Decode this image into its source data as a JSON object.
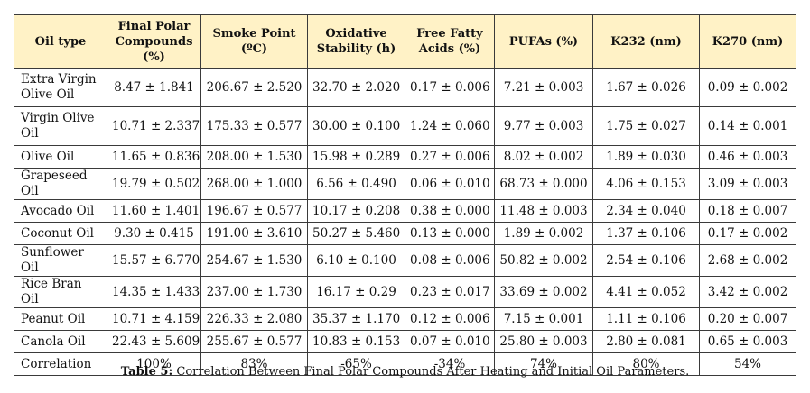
{
  "headers": [
    "Oil type",
    "Final Polar Compounds (%)",
    "Smoke Point (ºC)",
    "Oxidative Stability (h)",
    "Free Fatty Acids (%)",
    "PUFAs (%)",
    "K232 (nm)",
    "K270 (nm)"
  ],
  "rows": [
    [
      "Extra Virgin Olive Oil",
      "8.47 ± 1.841",
      "206.67 ± 2.520",
      "32.70 ± 2.020",
      "0.17 ± 0.006",
      "7.21 ± 0.003",
      "1.67 ± 0.026",
      "0.09 ± 0.002"
    ],
    [
      "Virgin Olive Oil",
      "10.71 ± 2.337",
      "175.33 ± 0.577",
      "30.00 ± 0.100",
      "1.24 ± 0.060",
      "9.77 ± 0.003",
      "1.75 ± 0.027",
      "0.14 ± 0.001"
    ],
    [
      "Olive Oil",
      "11.65 ± 0.836",
      "208.00 ± 1.530",
      "15.98 ± 0.289",
      "0.27 ± 0.006",
      "8.02 ± 0.002",
      "1.89 ± 0.030",
      "0.46 ± 0.003"
    ],
    [
      "Grapeseed Oil",
      "19.79 ± 0.502",
      "268.00 ± 1.000",
      "6.56 ± 0.490",
      "0.06 ± 0.010",
      "68.73 ± 0.000",
      "4.06 ± 0.153",
      "3.09 ± 0.003"
    ],
    [
      "Avocado Oil",
      "11.60 ± 1.401",
      "196.67 ± 0.577",
      "10.17 ± 0.208",
      "0.38 ± 0.000",
      "11.48 ± 0.003",
      "2.34 ± 0.040",
      "0.18 ± 0.007"
    ],
    [
      "Coconut Oil",
      "9.30 ± 0.415",
      "191.00 ± 3.610",
      "50.27 ± 5.460",
      "0.13 ± 0.000",
      "1.89 ± 0.002",
      "1.37 ± 0.106",
      "0.17 ± 0.002"
    ],
    [
      "Sunflower Oil",
      "15.57 ± 6.770",
      "254.67 ± 1.530",
      "6.10 ± 0.100",
      "0.08 ± 0.006",
      "50.82 ± 0.002",
      "2.54 ± 0.106",
      "2.68 ± 0.002"
    ],
    [
      "Rice Bran Oil",
      "14.35 ± 1.433",
      "237.00 ± 1.730",
      "16.17 ± 0.29",
      "0.23 ± 0.017",
      "33.69 ± 0.002",
      "4.41 ± 0.052",
      "3.42 ± 0.002"
    ],
    [
      "Peanut Oil",
      "10.71 ± 4.159",
      "226.33 ± 2.080",
      "35.37 ± 1.170",
      "0.12 ± 0.006",
      "7.15 ± 0.001",
      "1.11 ± 0.106",
      "0.20 ± 0.007"
    ],
    [
      "Canola Oil",
      "22.43 ± 5.609",
      "255.67 ± 0.577",
      "10.83 ± 0.153",
      "0.07 ± 0.010",
      "25.80 ± 0.003",
      "2.80 ± 0.081",
      "0.65 ± 0.003"
    ],
    [
      "Correlation",
      "100%",
      "83%",
      "-65%",
      "-34%",
      "74%",
      "80%",
      "54%"
    ]
  ],
  "caption": {
    "label": "Table 5:",
    "text": " Correlation Between Final Polar Compounds After Heating and Initial Oil Parameters."
  },
  "colors": {
    "header_background": "#fff2c6",
    "border": "#3a3a3a"
  }
}
